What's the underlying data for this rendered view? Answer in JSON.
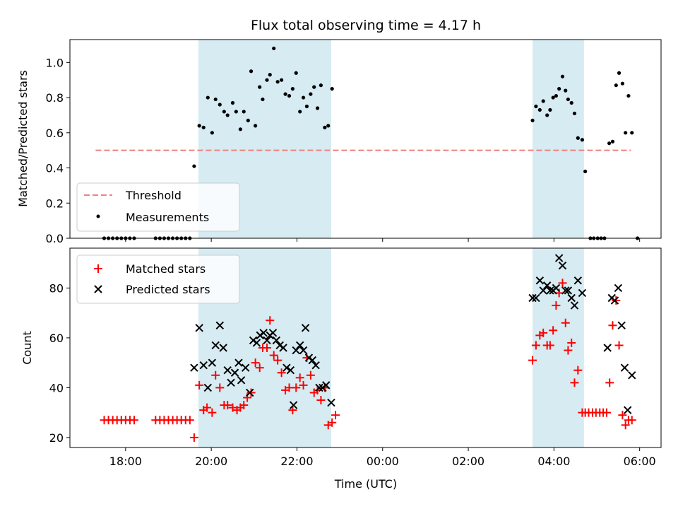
{
  "chart_data": [
    {
      "type": "scatter",
      "title": "Flux total observing time = 4.17 h",
      "xlabel": "",
      "ylabel": "Matched/Predicted stars",
      "ylim": [
        0,
        1.13
      ],
      "yticks": [
        "0.0",
        "0.2",
        "0.4",
        "0.6",
        "0.8",
        "1.0"
      ],
      "ytick_values": [
        0.0,
        0.2,
        0.4,
        0.6,
        0.8,
        1.0
      ],
      "x_unit": "hours since 00:00 UTC of first night (can exceed 24)",
      "xlim": [
        16.7,
        30.5
      ],
      "shaded_intervals": [
        [
          19.7,
          22.8
        ],
        [
          27.5,
          28.7
        ]
      ],
      "legend": {
        "position": "lower-left",
        "entries": [
          "Threshold",
          "Measurements"
        ]
      },
      "threshold": {
        "name": "Threshold",
        "value": 0.5,
        "x_range": [
          17.3,
          29.8
        ],
        "color": "#f08080"
      },
      "series": [
        {
          "name": "Measurements",
          "color": "#000000",
          "points": [
            [
              17.5,
              0
            ],
            [
              17.6,
              0
            ],
            [
              17.7,
              0
            ],
            [
              17.8,
              0
            ],
            [
              17.9,
              0
            ],
            [
              18.0,
              0
            ],
            [
              18.1,
              0
            ],
            [
              18.2,
              0
            ],
            [
              18.7,
              0
            ],
            [
              18.8,
              0
            ],
            [
              18.9,
              0
            ],
            [
              19.0,
              0
            ],
            [
              19.1,
              0
            ],
            [
              19.2,
              0
            ],
            [
              19.3,
              0
            ],
            [
              19.4,
              0
            ],
            [
              19.5,
              0
            ],
            [
              19.6,
              0.41
            ],
            [
              19.72,
              0.64
            ],
            [
              19.82,
              0.63
            ],
            [
              19.92,
              0.8
            ],
            [
              20.02,
              0.6
            ],
            [
              20.1,
              0.79
            ],
            [
              20.2,
              0.76
            ],
            [
              20.3,
              0.72
            ],
            [
              20.38,
              0.7
            ],
            [
              20.5,
              0.77
            ],
            [
              20.58,
              0.72
            ],
            [
              20.68,
              0.62
            ],
            [
              20.76,
              0.72
            ],
            [
              20.86,
              0.67
            ],
            [
              20.93,
              0.95
            ],
            [
              21.03,
              0.64
            ],
            [
              21.13,
              0.86
            ],
            [
              21.2,
              0.79
            ],
            [
              21.3,
              0.9
            ],
            [
              21.37,
              0.93
            ],
            [
              21.46,
              1.08
            ],
            [
              21.55,
              0.89
            ],
            [
              21.64,
              0.9
            ],
            [
              21.73,
              0.82
            ],
            [
              21.82,
              0.81
            ],
            [
              21.9,
              0.85
            ],
            [
              21.98,
              0.94
            ],
            [
              22.07,
              0.72
            ],
            [
              22.15,
              0.8
            ],
            [
              22.23,
              0.75
            ],
            [
              22.32,
              0.82
            ],
            [
              22.4,
              0.86
            ],
            [
              22.48,
              0.74
            ],
            [
              22.56,
              0.87
            ],
            [
              22.65,
              0.63
            ],
            [
              22.73,
              0.64
            ],
            [
              22.82,
              0.85
            ],
            [
              27.5,
              0.67
            ],
            [
              27.58,
              0.75
            ],
            [
              27.67,
              0.73
            ],
            [
              27.75,
              0.78
            ],
            [
              27.84,
              0.7
            ],
            [
              27.91,
              0.73
            ],
            [
              27.98,
              0.8
            ],
            [
              28.05,
              0.81
            ],
            [
              28.12,
              0.85
            ],
            [
              28.2,
              0.92
            ],
            [
              28.27,
              0.84
            ],
            [
              28.33,
              0.79
            ],
            [
              28.41,
              0.77
            ],
            [
              28.48,
              0.71
            ],
            [
              28.56,
              0.57
            ],
            [
              28.66,
              0.56
            ],
            [
              28.73,
              0.38
            ],
            [
              28.85,
              0
            ],
            [
              28.93,
              0
            ],
            [
              29.02,
              0
            ],
            [
              29.1,
              0
            ],
            [
              29.18,
              0
            ],
            [
              29.29,
              0.54
            ],
            [
              29.37,
              0.55
            ],
            [
              29.45,
              0.87
            ],
            [
              29.52,
              0.94
            ],
            [
              29.6,
              0.88
            ],
            [
              29.67,
              0.6
            ],
            [
              29.74,
              0.81
            ],
            [
              29.82,
              0.6
            ],
            [
              29.95,
              0
            ]
          ]
        }
      ]
    },
    {
      "type": "scatter",
      "title": "",
      "xlabel": "Time (UTC)",
      "ylabel": "Count",
      "ylim": [
        16,
        96
      ],
      "yticks": [
        "20",
        "40",
        "60",
        "80"
      ],
      "ytick_values": [
        20,
        40,
        60,
        80
      ],
      "xticks": [
        "18:00",
        "20:00",
        "22:00",
        "00:00",
        "02:00",
        "04:00",
        "06:00"
      ],
      "xtick_values": [
        18,
        20,
        22,
        24,
        26,
        28,
        30
      ],
      "x_unit": "hours since 00:00 UTC of first night (can exceed 24)",
      "xlim": [
        16.7,
        30.5
      ],
      "shaded_intervals": [
        [
          19.7,
          22.8
        ],
        [
          27.5,
          28.7
        ]
      ],
      "legend": {
        "position": "upper-left",
        "entries": [
          "Matched stars",
          "Predicted stars"
        ]
      },
      "series": [
        {
          "name": "Matched stars",
          "marker": "plus",
          "color": "#ff0000",
          "points": [
            [
              17.5,
              27
            ],
            [
              17.6,
              27
            ],
            [
              17.7,
              27
            ],
            [
              17.8,
              27
            ],
            [
              17.9,
              27
            ],
            [
              18.0,
              27
            ],
            [
              18.1,
              27
            ],
            [
              18.2,
              27
            ],
            [
              18.7,
              27
            ],
            [
              18.8,
              27
            ],
            [
              18.9,
              27
            ],
            [
              19.0,
              27
            ],
            [
              19.1,
              27
            ],
            [
              19.2,
              27
            ],
            [
              19.3,
              27
            ],
            [
              19.4,
              27
            ],
            [
              19.5,
              27
            ],
            [
              19.6,
              20
            ],
            [
              19.72,
              41
            ],
            [
              19.82,
              31
            ],
            [
              19.9,
              32
            ],
            [
              20.02,
              30
            ],
            [
              20.1,
              45
            ],
            [
              20.2,
              40
            ],
            [
              20.3,
              33
            ],
            [
              20.38,
              33
            ],
            [
              20.5,
              32
            ],
            [
              20.6,
              31
            ],
            [
              20.68,
              32
            ],
            [
              20.76,
              33
            ],
            [
              20.84,
              36
            ],
            [
              20.93,
              38
            ],
            [
              21.03,
              50
            ],
            [
              21.13,
              48
            ],
            [
              21.2,
              56
            ],
            [
              21.3,
              56
            ],
            [
              21.37,
              67
            ],
            [
              21.46,
              53
            ],
            [
              21.55,
              51
            ],
            [
              21.64,
              46
            ],
            [
              21.73,
              39
            ],
            [
              21.82,
              40
            ],
            [
              21.9,
              31
            ],
            [
              21.98,
              40
            ],
            [
              22.07,
              44
            ],
            [
              22.15,
              41
            ],
            [
              22.23,
              52
            ],
            [
              22.32,
              45
            ],
            [
              22.4,
              38
            ],
            [
              22.48,
              39
            ],
            [
              22.56,
              35
            ],
            [
              22.65,
              40
            ],
            [
              22.73,
              25
            ],
            [
              22.82,
              26
            ],
            [
              22.9,
              29
            ],
            [
              27.5,
              51
            ],
            [
              27.58,
              57
            ],
            [
              27.67,
              61
            ],
            [
              27.75,
              62
            ],
            [
              27.84,
              57
            ],
            [
              27.91,
              57
            ],
            [
              27.98,
              63
            ],
            [
              28.05,
              73
            ],
            [
              28.12,
              78
            ],
            [
              28.2,
              82
            ],
            [
              28.27,
              66
            ],
            [
              28.33,
              55
            ],
            [
              28.41,
              58
            ],
            [
              28.48,
              42
            ],
            [
              28.56,
              47
            ],
            [
              28.66,
              30
            ],
            [
              28.73,
              30
            ],
            [
              28.81,
              30
            ],
            [
              28.9,
              30
            ],
            [
              28.98,
              30
            ],
            [
              29.07,
              30
            ],
            [
              29.15,
              30
            ],
            [
              29.23,
              30
            ],
            [
              29.3,
              42
            ],
            [
              29.37,
              65
            ],
            [
              29.45,
              75
            ],
            [
              29.52,
              57
            ],
            [
              29.6,
              29
            ],
            [
              29.67,
              25
            ],
            [
              29.74,
              27
            ],
            [
              29.82,
              27
            ]
          ]
        },
        {
          "name": "Predicted stars",
          "marker": "x",
          "color": "#000000",
          "points": [
            [
              19.6,
              48
            ],
            [
              19.72,
              64
            ],
            [
              19.82,
              49
            ],
            [
              19.92,
              40
            ],
            [
              20.02,
              50
            ],
            [
              20.1,
              57
            ],
            [
              20.2,
              65
            ],
            [
              20.28,
              56
            ],
            [
              20.38,
              47
            ],
            [
              20.46,
              42
            ],
            [
              20.55,
              46
            ],
            [
              20.64,
              50
            ],
            [
              20.7,
              43
            ],
            [
              20.8,
              48
            ],
            [
              20.9,
              38
            ],
            [
              20.98,
              59
            ],
            [
              21.06,
              58
            ],
            [
              21.14,
              61
            ],
            [
              21.22,
              62
            ],
            [
              21.3,
              59
            ],
            [
              21.37,
              61
            ],
            [
              21.44,
              62
            ],
            [
              21.52,
              59
            ],
            [
              21.6,
              57
            ],
            [
              21.68,
              56
            ],
            [
              21.76,
              48
            ],
            [
              21.85,
              47
            ],
            [
              21.92,
              33
            ],
            [
              21.98,
              55
            ],
            [
              22.07,
              57
            ],
            [
              22.15,
              55
            ],
            [
              22.2,
              64
            ],
            [
              22.28,
              52
            ],
            [
              22.36,
              51
            ],
            [
              22.44,
              49
            ],
            [
              22.52,
              40
            ],
            [
              22.6,
              40
            ],
            [
              22.68,
              41
            ],
            [
              22.8,
              34
            ],
            [
              27.5,
              76
            ],
            [
              27.58,
              76
            ],
            [
              27.67,
              83
            ],
            [
              27.75,
              79
            ],
            [
              27.84,
              81
            ],
            [
              27.91,
              79
            ],
            [
              27.98,
              79
            ],
            [
              28.05,
              80
            ],
            [
              28.12,
              92
            ],
            [
              28.2,
              89
            ],
            [
              28.27,
              79
            ],
            [
              28.33,
              79
            ],
            [
              28.41,
              76
            ],
            [
              28.48,
              73
            ],
            [
              28.56,
              83
            ],
            [
              28.66,
              78
            ],
            [
              29.25,
              56
            ],
            [
              29.35,
              76
            ],
            [
              29.42,
              75
            ],
            [
              29.5,
              80
            ],
            [
              29.58,
              65
            ],
            [
              29.65,
              48
            ],
            [
              29.72,
              31
            ],
            [
              29.82,
              45
            ]
          ]
        }
      ]
    }
  ]
}
